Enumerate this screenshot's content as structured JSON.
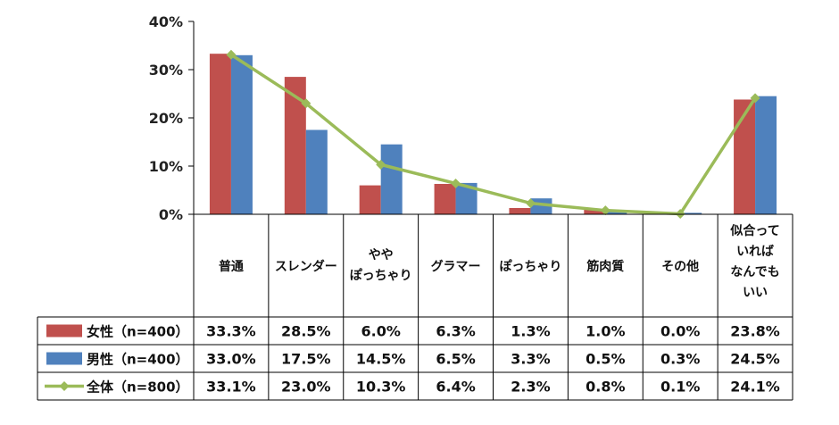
{
  "chart_data": {
    "type": "bar",
    "ylim": [
      0,
      40
    ],
    "yticks": [
      "0%",
      "10%",
      "20%",
      "30%",
      "40%"
    ],
    "categories": [
      [
        "普通"
      ],
      [
        "スレンダー"
      ],
      [
        "やや",
        "ぽっちゃり"
      ],
      [
        "グラマー"
      ],
      [
        "ぽっちゃり"
      ],
      [
        "筋肉質"
      ],
      [
        "その他"
      ],
      [
        "似合って",
        "いれば",
        "なんでも",
        "いい"
      ]
    ],
    "series": [
      {
        "name": "女性（n=400）",
        "kind": "bar",
        "color": "#C0504D",
        "values": [
          33.3,
          28.5,
          6.0,
          6.3,
          1.3,
          1.0,
          0.0,
          23.8
        ],
        "labels": [
          "33.3%",
          "28.5%",
          "6.0%",
          "6.3%",
          "1.3%",
          "1.0%",
          "0.0%",
          "23.8%"
        ]
      },
      {
        "name": "男性（n=400）",
        "kind": "bar",
        "color": "#4F81BD",
        "values": [
          33.0,
          17.5,
          14.5,
          6.5,
          3.3,
          0.5,
          0.3,
          24.5
        ],
        "labels": [
          "33.0%",
          "17.5%",
          "14.5%",
          "6.5%",
          "3.3%",
          "0.5%",
          "0.3%",
          "24.5%"
        ]
      },
      {
        "name": "全体（n=800）",
        "kind": "line",
        "color": "#9BBB59",
        "values": [
          33.1,
          23.0,
          10.3,
          6.4,
          2.3,
          0.8,
          0.1,
          24.1
        ],
        "labels": [
          "33.1%",
          "23.0%",
          "10.3%",
          "6.4%",
          "2.3%",
          "0.8%",
          "0.1%",
          "24.1%"
        ]
      }
    ],
    "grid": false,
    "legend": "data-table"
  }
}
